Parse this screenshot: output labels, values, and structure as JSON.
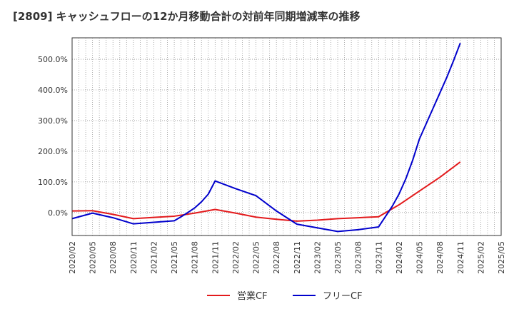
{
  "chart_data": {
    "type": "line",
    "title": "[2809]  キャッシュフローの12か月移動合計の対前年同期増減率の推移",
    "xlabel": "",
    "ylabel": "",
    "x": [
      "2020/02",
      "2020/05",
      "2020/08",
      "2020/11",
      "2021/02",
      "2021/05",
      "2021/08",
      "2021/11",
      "2022/02",
      "2022/05",
      "2022/08",
      "2022/11",
      "2023/02",
      "2023/05",
      "2023/08",
      "2023/11",
      "2024/02",
      "2024/05",
      "2024/08",
      "2024/11",
      "2025/02",
      "2025/05"
    ],
    "y_ticks": [
      "0.0%",
      "100.0%",
      "200.0%",
      "300.0%",
      "400.0%",
      "500.0%"
    ],
    "y_tick_values": [
      0,
      100,
      200,
      300,
      400,
      500
    ],
    "ylim": [
      -75,
      570
    ],
    "grid": true,
    "legend_position": "bottom-center",
    "series": [
      {
        "name": "営業CF",
        "color": "#e31a1c",
        "x": [
          "2020/02",
          "2020/05",
          "2020/08",
          "2020/11",
          "2021/02",
          "2021/05",
          "2021/08",
          "2021/11",
          "2022/02",
          "2022/05",
          "2022/08",
          "2022/11",
          "2023/02",
          "2023/05",
          "2023/08",
          "2023/11",
          "2024/02",
          "2024/05",
          "2024/08",
          "2024/11"
        ],
        "values": [
          5,
          6,
          -6,
          -20,
          -16,
          -12,
          -2,
          10,
          -2,
          -15,
          -22,
          -28,
          -25,
          -20,
          -17,
          -14,
          25,
          70,
          115,
          165
        ]
      },
      {
        "name": "フリーCF",
        "color": "#0000cc",
        "x": [
          "2020/02",
          "2020/05",
          "2020/08",
          "2020/11",
          "2021/02",
          "2021/05",
          "2021/06",
          "2021/07",
          "2021/08",
          "2021/09",
          "2021/10",
          "2021/11",
          "2022/02",
          "2022/05",
          "2022/08",
          "2022/11",
          "2023/02",
          "2023/05",
          "2023/08",
          "2023/11",
          "2024/01",
          "2024/02",
          "2024/03",
          "2024/04",
          "2024/05",
          "2024/06",
          "2024/07",
          "2024/08",
          "2024/09",
          "2024/10",
          "2024/11"
        ],
        "values": [
          -20,
          -2,
          -17,
          -37,
          -32,
          -27,
          -14,
          0,
          15,
          35,
          60,
          103,
          78,
          55,
          5,
          -38,
          -50,
          -62,
          -56,
          -47,
          20,
          60,
          110,
          170,
          240,
          290,
          340,
          390,
          440,
          495,
          553
        ]
      }
    ]
  }
}
